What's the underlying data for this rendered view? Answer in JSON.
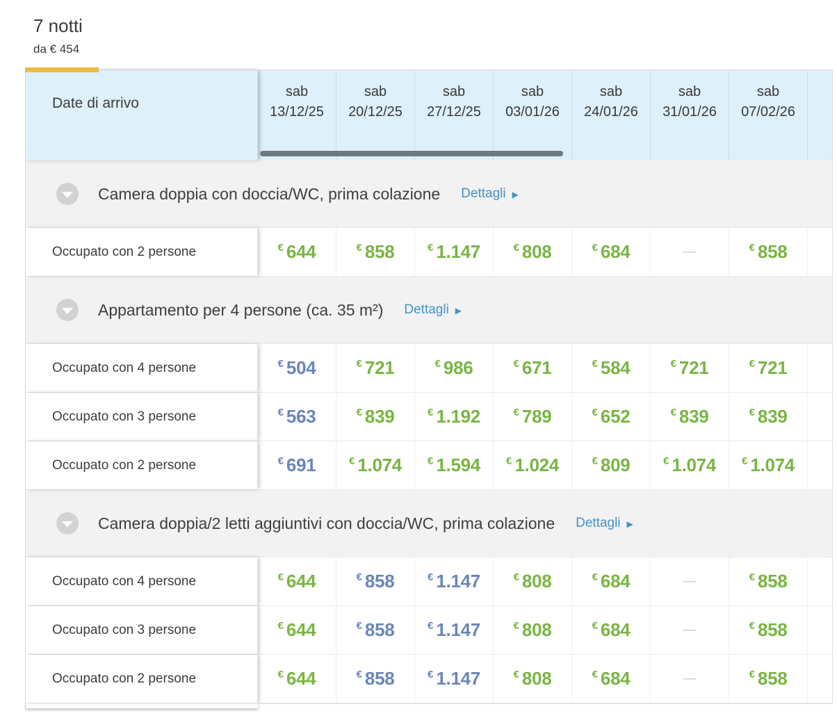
{
  "page": {
    "title": "7 notti",
    "subtitle": "da € 454"
  },
  "table": {
    "corner_label": "Date di arrivo",
    "details_label": "Dettagli",
    "currency_symbol": "€",
    "empty_cell": "—",
    "columns": [
      {
        "day": "sab",
        "date": "13/12/25"
      },
      {
        "day": "sab",
        "date": "20/12/25"
      },
      {
        "day": "sab",
        "date": "27/12/25"
      },
      {
        "day": "sab",
        "date": "03/01/26"
      },
      {
        "day": "sab",
        "date": "24/01/26"
      },
      {
        "day": "sab",
        "date": "31/01/26"
      },
      {
        "day": "sab",
        "date": "07/02/26"
      }
    ],
    "sections": [
      {
        "title": "Camera doppia con doccia/WC, prima colazione",
        "rows": [
          {
            "label": "Occupato con 2 persone",
            "prices": [
              {
                "value": "644",
                "color": "green"
              },
              {
                "value": "858",
                "color": "green"
              },
              {
                "value": "1.147",
                "color": "green"
              },
              {
                "value": "808",
                "color": "green"
              },
              {
                "value": "684",
                "color": "green"
              },
              {
                "value": null,
                "color": "none"
              },
              {
                "value": "858",
                "color": "green"
              }
            ]
          }
        ]
      },
      {
        "title": "Appartamento per 4 persone (ca. 35 m²)",
        "rows": [
          {
            "label": "Occupato con 4 persone",
            "prices": [
              {
                "value": "504",
                "color": "blue"
              },
              {
                "value": "721",
                "color": "green"
              },
              {
                "value": "986",
                "color": "green"
              },
              {
                "value": "671",
                "color": "green"
              },
              {
                "value": "584",
                "color": "green"
              },
              {
                "value": "721",
                "color": "green"
              },
              {
                "value": "721",
                "color": "green"
              }
            ]
          },
          {
            "label": "Occupato con 3 persone",
            "prices": [
              {
                "value": "563",
                "color": "blue"
              },
              {
                "value": "839",
                "color": "green"
              },
              {
                "value": "1.192",
                "color": "green"
              },
              {
                "value": "789",
                "color": "green"
              },
              {
                "value": "652",
                "color": "green"
              },
              {
                "value": "839",
                "color": "green"
              },
              {
                "value": "839",
                "color": "green"
              }
            ]
          },
          {
            "label": "Occupato con 2 persone",
            "prices": [
              {
                "value": "691",
                "color": "blue"
              },
              {
                "value": "1.074",
                "color": "green"
              },
              {
                "value": "1.594",
                "color": "green"
              },
              {
                "value": "1.024",
                "color": "green"
              },
              {
                "value": "809",
                "color": "green"
              },
              {
                "value": "1.074",
                "color": "green"
              },
              {
                "value": "1.074",
                "color": "green"
              }
            ]
          }
        ]
      },
      {
        "title": "Camera doppia/2 letti aggiuntivi con doccia/WC, prima colazione",
        "rows": [
          {
            "label": "Occupato con 4 persone",
            "prices": [
              {
                "value": "644",
                "color": "green"
              },
              {
                "value": "858",
                "color": "blue"
              },
              {
                "value": "1.147",
                "color": "blue"
              },
              {
                "value": "808",
                "color": "green"
              },
              {
                "value": "684",
                "color": "green"
              },
              {
                "value": null,
                "color": "none"
              },
              {
                "value": "858",
                "color": "green"
              }
            ]
          },
          {
            "label": "Occupato con 3 persone",
            "prices": [
              {
                "value": "644",
                "color": "green"
              },
              {
                "value": "858",
                "color": "blue"
              },
              {
                "value": "1.147",
                "color": "blue"
              },
              {
                "value": "808",
                "color": "green"
              },
              {
                "value": "684",
                "color": "green"
              },
              {
                "value": null,
                "color": "none"
              },
              {
                "value": "858",
                "color": "green"
              }
            ]
          },
          {
            "label": "Occupato con 2 persone",
            "prices": [
              {
                "value": "644",
                "color": "green"
              },
              {
                "value": "858",
                "color": "blue"
              },
              {
                "value": "1.147",
                "color": "blue"
              },
              {
                "value": "808",
                "color": "green"
              },
              {
                "value": "684",
                "color": "green"
              },
              {
                "value": null,
                "color": "none"
              },
              {
                "value": "858",
                "color": "green"
              }
            ]
          }
        ]
      }
    ]
  },
  "icons": {
    "details_arrow": "▶"
  },
  "colors": {
    "price_green": "#79b543",
    "price_blue": "#6986b8",
    "link_blue": "#4293c5",
    "accent_yellow": "#ecba45",
    "header_blue_bg": "#def0f9",
    "category_gray_bg": "#f2f2f2",
    "scrollbar_thumb": "#6f787e"
  }
}
